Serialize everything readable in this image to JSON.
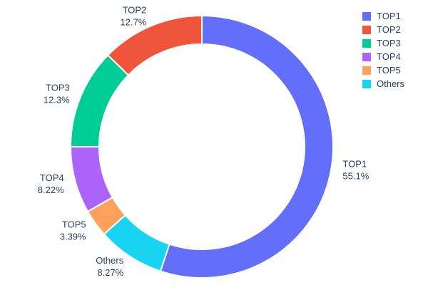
{
  "chart_data": {
    "type": "pie",
    "subtype": "donut",
    "hole": 0.78,
    "title": "",
    "categories": [
      "TOP1",
      "TOP2",
      "TOP3",
      "TOP4",
      "TOP5",
      "Others"
    ],
    "values": [
      55.1,
      12.7,
      12.3,
      8.22,
      3.39,
      8.27
    ],
    "percent_labels": [
      "55.1%",
      "12.7%",
      "12.3%",
      "8.22%",
      "3.39%",
      "8.27%"
    ],
    "colors": [
      "#636EFA",
      "#EF553B",
      "#00CC96",
      "#AB63FA",
      "#FFA15A",
      "#19D3F3"
    ],
    "slice_border_color": "#ffffff",
    "text_color": "#2a3f5f",
    "background": "#ffffff",
    "legend": {
      "position": "top-right",
      "entries": [
        "TOP1",
        "TOP2",
        "TOP3",
        "TOP4",
        "TOP5",
        "Others"
      ]
    },
    "layout_hint": "largest slice sweeps clockwise from 12 o'clock; remaining slices laid counterclockwise from 12 o'clock; labels outside with name and percent"
  }
}
